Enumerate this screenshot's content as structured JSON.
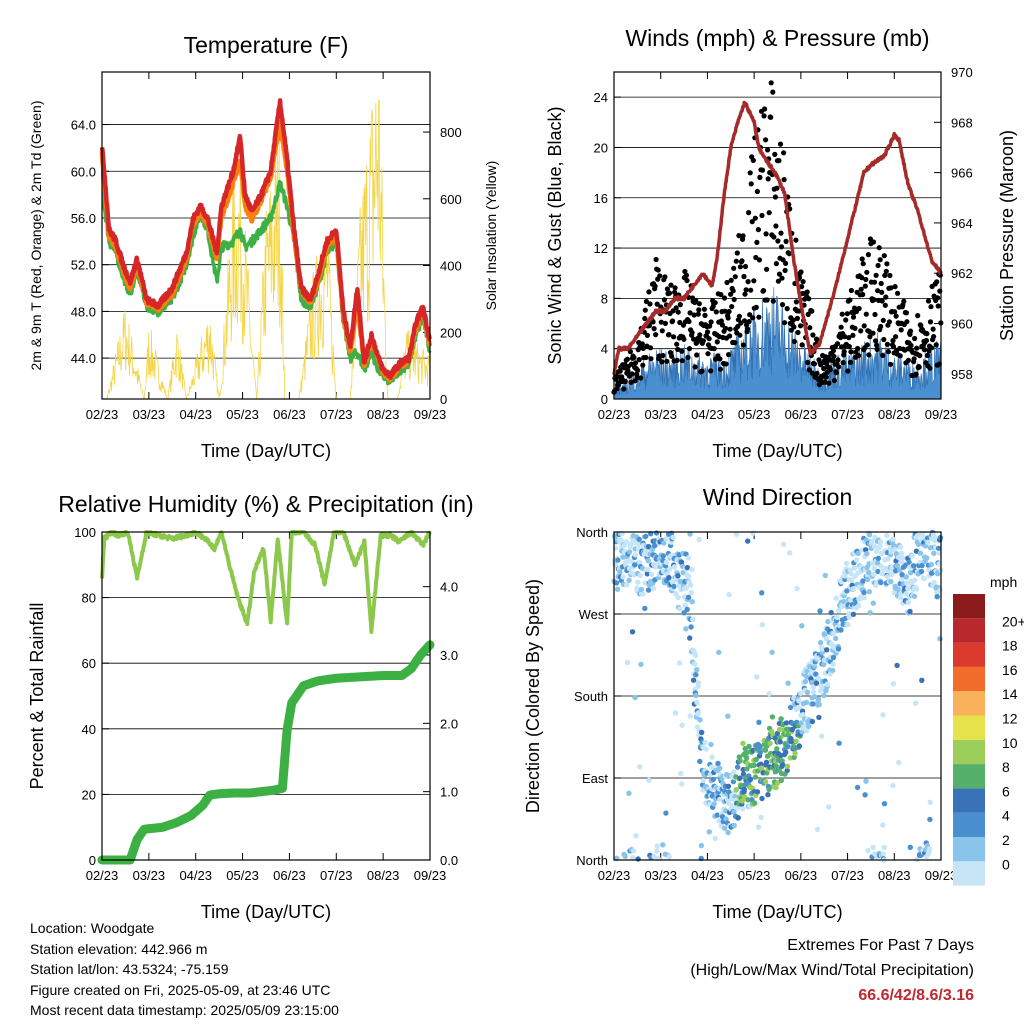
{
  "x_tick_labels": [
    "02/23",
    "03/23",
    "04/23",
    "05/23",
    "06/23",
    "07/23",
    "08/23",
    "09/23"
  ],
  "metadata": {
    "location": "Location: Woodgate",
    "elevation": "Station elevation: 442.966 m",
    "latlon": "Station lat/lon: 43.5324; -75.159",
    "created": "Figure created on Fri, 2025-05-09, at 23:46 UTC",
    "recent": "Most recent data timestamp: 2025/05/09 23:15:00"
  },
  "extremes": {
    "title": "Extremes For Past 7 Days",
    "subtitle": "(High/Low/Max Wind/Total Precipitation)",
    "values": "66.6/42/8.6/3.16",
    "color": "#c0282d"
  },
  "chart_data": [
    {
      "type": "line",
      "title": "Temperature (F)",
      "xlabel": "Time (Day/UTC)",
      "ylabel": "2m & 9m T (Red, Orange) & 2m Td (Green)",
      "y2label": "Solar Insolation (Yellow)",
      "xlim": [
        0,
        7
      ],
      "ylim": [
        40.5,
        68.5
      ],
      "y2lim": [
        0,
        980
      ],
      "yticks": [
        "44.0",
        "48.0",
        "52.0",
        "56.0",
        "60.0",
        "64.0"
      ],
      "y2ticks": [
        "0",
        "200",
        "400",
        "600",
        "800"
      ],
      "grid": "horizontal",
      "series": [
        {
          "color": "#d62728",
          "axis": "left",
          "x": [
            0.0,
            0.05,
            0.15,
            0.3,
            0.45,
            0.6,
            0.75,
            0.95,
            1.2,
            1.5,
            1.8,
            1.95,
            2.1,
            2.25,
            2.45,
            2.55,
            2.8,
            2.95,
            3.05,
            3.2,
            3.4,
            3.6,
            3.8,
            3.95,
            4.1,
            4.25,
            4.45,
            4.6,
            4.8,
            5.0,
            5.15,
            5.3,
            5.45,
            5.6,
            5.75,
            5.9,
            6.0,
            6.15,
            6.35,
            6.55,
            6.7,
            6.85,
            7.0
          ],
          "values": [
            62,
            60,
            55,
            54,
            52,
            50.5,
            52.5,
            49,
            48.5,
            50,
            53,
            56,
            57,
            56,
            53,
            57,
            60,
            63,
            58,
            56.5,
            58,
            60,
            66,
            61,
            55,
            50,
            49,
            51,
            54,
            55,
            48,
            45,
            50,
            43.5,
            46,
            44,
            43,
            42.5,
            43.5,
            44,
            47,
            48.4,
            45.5
          ]
        },
        {
          "color": "#ff7f0e",
          "axis": "left",
          "x": [
            0.0,
            0.05,
            0.15,
            0.3,
            0.45,
            0.6,
            0.75,
            0.95,
            1.2,
            1.5,
            1.8,
            1.95,
            2.1,
            2.25,
            2.45,
            2.55,
            2.8,
            2.95,
            3.05,
            3.2,
            3.4,
            3.6,
            3.8,
            3.95,
            4.1,
            4.25,
            4.45,
            4.6,
            4.8,
            5.0,
            5.15,
            5.3,
            5.45,
            5.6,
            5.75,
            5.9,
            6.0,
            6.15,
            6.35,
            6.55,
            6.7,
            6.85,
            7.0
          ],
          "values": [
            61.5,
            59,
            54.5,
            53.5,
            51.5,
            50,
            52,
            48.8,
            48.3,
            49.5,
            52.5,
            55.5,
            56.5,
            55.5,
            52.5,
            56,
            59,
            61,
            57,
            55.8,
            57.5,
            59.5,
            64,
            60,
            54.5,
            49.8,
            48.8,
            50.5,
            53.5,
            54.5,
            47.5,
            44.5,
            48.5,
            43.3,
            45.5,
            43.8,
            42.8,
            42.3,
            43.3,
            43.8,
            46.5,
            48,
            45.2
          ]
        },
        {
          "color": "#3cb043",
          "axis": "left",
          "x": [
            0.0,
            0.05,
            0.15,
            0.3,
            0.45,
            0.6,
            0.75,
            0.95,
            1.2,
            1.5,
            1.8,
            1.95,
            2.1,
            2.25,
            2.45,
            2.55,
            2.8,
            2.95,
            3.05,
            3.2,
            3.4,
            3.6,
            3.8,
            3.95,
            4.1,
            4.25,
            4.45,
            4.6,
            4.8,
            5.0,
            5.15,
            5.3,
            5.45,
            5.6,
            5.75,
            5.9,
            6.0,
            6.15,
            6.35,
            6.55,
            6.7,
            6.85,
            7.0
          ],
          "values": [
            61,
            57,
            54,
            53,
            51,
            49.5,
            51.5,
            48.5,
            48,
            49,
            52,
            54.5,
            56.5,
            55,
            50.5,
            53.5,
            54,
            55,
            53.5,
            54,
            55,
            56,
            59,
            57,
            54,
            49,
            48.5,
            50,
            53,
            54,
            47,
            44,
            44.5,
            43,
            44.5,
            43,
            42.5,
            42,
            43,
            43.5,
            46,
            47.5,
            44.5
          ]
        },
        {
          "color": "#f5d547",
          "axis": "right",
          "role": "insolation",
          "x": [
            0.1,
            0.5,
            0.9,
            1.0,
            1.4,
            1.6,
            1.8,
            2.3,
            2.5,
            2.8,
            2.95,
            3.3,
            3.5,
            3.8,
            3.9,
            4.2,
            4.5,
            4.8,
            5.0,
            5.3,
            5.5,
            5.9,
            6.1,
            6.3,
            6.5,
            6.9
          ],
          "values": [
            0,
            250,
            0,
            200,
            0,
            200,
            0,
            250,
            0,
            560,
            650,
            0,
            500,
            720,
            0,
            0,
            320,
            500,
            0,
            0,
            480,
            980,
            0,
            0,
            180,
            120
          ]
        }
      ]
    },
    {
      "type": "scatter",
      "title": "Winds (mph) & Pressure (mb)",
      "xlabel": "Time (Day/UTC)",
      "ylabel": "Sonic Wind & Gust (Blue, Black)",
      "y2label": "Station Pressure (Maroon)",
      "xlim": [
        0,
        7
      ],
      "ylim": [
        0,
        26
      ],
      "y2lim": [
        957,
        970
      ],
      "yticks": [
        "0",
        "4",
        "8",
        "12",
        "16",
        "20",
        "24"
      ],
      "y2ticks": [
        "958",
        "960",
        "962",
        "964",
        "966",
        "968",
        "970"
      ],
      "grid": "horizontal",
      "series": [
        {
          "color": "#000000",
          "axis": "left",
          "role": "gust-dots",
          "x": [
            0.0,
            0.3,
            0.6,
            0.9,
            1.2,
            1.5,
            1.8,
            2.1,
            2.4,
            2.6,
            2.8,
            3.0,
            3.2,
            3.4,
            3.6,
            3.8,
            4.0,
            4.2,
            4.4,
            4.6,
            4.8,
            5.0,
            5.2,
            5.4,
            5.6,
            5.8,
            6.0,
            6.2,
            6.4,
            6.6,
            6.8,
            7.0
          ],
          "values": [
            1.5,
            2.5,
            5,
            9,
            7,
            8,
            6,
            6,
            7,
            9,
            12,
            16,
            19,
            20,
            16,
            12,
            8,
            6,
            3,
            3,
            5,
            6,
            8,
            9,
            11,
            9,
            7,
            6,
            5,
            6,
            7,
            8
          ]
        },
        {
          "color": "#4a90d0",
          "axis": "left",
          "role": "wind-area",
          "x": [
            0.0,
            0.3,
            0.6,
            0.9,
            1.2,
            1.5,
            1.8,
            2.1,
            2.4,
            2.6,
            2.8,
            3.0,
            3.2,
            3.4,
            3.6,
            3.8,
            4.0,
            4.2,
            4.4,
            4.6,
            4.8,
            5.0,
            5.2,
            5.4,
            5.6,
            5.8,
            6.0,
            6.2,
            6.4,
            6.6,
            6.8,
            7.0
          ],
          "values": [
            0.5,
            1.5,
            2.5,
            3.5,
            3,
            3.5,
            3,
            3,
            3,
            4,
            5,
            6,
            7,
            7.5,
            6.5,
            5,
            4,
            3,
            2,
            2.5,
            3,
            3,
            3.5,
            4,
            4.5,
            4,
            3,
            3,
            2.5,
            3,
            3.5,
            4
          ]
        },
        {
          "color": "#a52a2a",
          "axis": "right",
          "role": "pressure",
          "x": [
            0.0,
            0.1,
            0.3,
            0.5,
            0.7,
            0.9,
            1.1,
            1.3,
            1.5,
            1.7,
            1.9,
            2.1,
            2.2,
            2.35,
            2.5,
            2.65,
            2.8,
            3.0,
            3.1,
            3.25,
            3.45,
            3.65,
            3.85,
            4.0,
            4.2,
            4.4,
            4.6,
            4.75,
            4.95,
            5.15,
            5.35,
            5.5,
            5.65,
            5.8,
            6.0,
            6.1,
            6.3,
            6.5,
            6.65,
            6.8,
            7.0
          ],
          "values": [
            958,
            959,
            959,
            959.5,
            960,
            960.5,
            960.5,
            961,
            961,
            961.5,
            962,
            961.5,
            962.5,
            965,
            967,
            968,
            968.8,
            968,
            967,
            966.5,
            966,
            965.2,
            962.5,
            960.8,
            958.8,
            959.2,
            960.5,
            961.5,
            963,
            964.5,
            966,
            966.3,
            966.5,
            966.7,
            967.5,
            967.3,
            965.5,
            964.5,
            963.5,
            962.5,
            962
          ]
        }
      ]
    },
    {
      "type": "line",
      "title": "Relative Humidity (%) & Precipitation (in)",
      "xlabel": "Time (Day/UTC)",
      "ylabel": "Percent & Total Rainfall",
      "xlim": [
        0,
        7
      ],
      "ylim": [
        0,
        100
      ],
      "y2lim": [
        0,
        4.8
      ],
      "yticks": [
        "0",
        "20",
        "40",
        "60",
        "80",
        "100"
      ],
      "y2ticks": [
        "0.0",
        "1.0",
        "2.0",
        "3.0",
        "4.0"
      ],
      "grid": "horizontal",
      "series": [
        {
          "color": "#8cc84b",
          "axis": "left",
          "role": "rh",
          "x": [
            0.0,
            0.05,
            0.2,
            0.35,
            0.55,
            0.75,
            0.95,
            1.2,
            1.5,
            1.8,
            2.0,
            2.2,
            2.4,
            2.55,
            2.75,
            2.9,
            3.1,
            3.25,
            3.45,
            3.6,
            3.75,
            3.95,
            4.05,
            4.3,
            4.55,
            4.75,
            4.95,
            5.15,
            5.4,
            5.6,
            5.75,
            5.95,
            6.15,
            6.35,
            6.6,
            6.85,
            7.0
          ],
          "values": [
            86,
            98,
            100,
            99,
            100,
            86,
            100,
            99,
            98,
            99,
            100,
            98,
            95,
            100,
            88,
            80,
            72,
            88,
            95,
            73,
            98,
            72,
            100,
            100,
            96,
            84,
            100,
            100,
            90,
            97,
            70,
            99,
            99,
            97,
            100,
            96,
            100
          ]
        },
        {
          "color": "#3cb043",
          "axis": "right",
          "role": "rain",
          "x": [
            0.0,
            0.6,
            0.75,
            0.9,
            1.3,
            1.6,
            1.9,
            2.15,
            2.3,
            2.5,
            2.8,
            3.15,
            3.65,
            3.85,
            3.95,
            4.05,
            4.3,
            4.6,
            5.0,
            5.5,
            6.0,
            6.4,
            6.6,
            6.8,
            7.0
          ],
          "values": [
            0,
            0,
            0.3,
            0.45,
            0.48,
            0.55,
            0.65,
            0.8,
            0.95,
            0.97,
            0.98,
            0.98,
            1.02,
            1.05,
            1.9,
            2.3,
            2.55,
            2.62,
            2.66,
            2.68,
            2.7,
            2.7,
            2.8,
            3.0,
            3.15
          ]
        }
      ]
    },
    {
      "type": "scatter",
      "title": "Wind Direction",
      "xlabel": "Time (Day/UTC)",
      "ylabel": "Direction (Colored By Speed)",
      "xlim": [
        0,
        7
      ],
      "ylim": [
        0,
        360
      ],
      "ytick_labels": [
        "North",
        "East",
        "South",
        "West",
        "North"
      ],
      "legend_title": "mph",
      "legend_labels": [
        "0",
        "2",
        "4",
        "6",
        "8",
        "10",
        "12",
        "14",
        "16",
        "18",
        "20+"
      ],
      "legend_colors": [
        "#c6e6f8",
        "#89c4ea",
        "#4a90d0",
        "#3a72b8",
        "#54b06a",
        "#9bce5a",
        "#e6e34a",
        "#f9b25a",
        "#f26d2b",
        "#d93a2b",
        "#b9282d",
        "#8b1a1a"
      ],
      "series": [
        {
          "name": "",
          "role": "direction",
          "x": [
            0.1,
            0.4,
            0.6,
            0.8,
            1.0,
            1.2,
            1.4,
            1.6,
            1.9,
            2.1,
            2.3,
            2.5,
            2.7,
            2.9,
            3.1,
            3.3,
            3.5,
            3.7,
            3.9,
            4.1,
            4.3,
            4.5,
            4.7,
            4.9,
            5.1,
            5.3,
            5.5,
            5.7,
            5.9,
            6.1,
            6.3,
            6.5,
            6.7,
            6.9
          ],
          "values": [
            330,
            340,
            320,
            335,
            345,
            330,
            310,
            300,
            100,
            80,
            70,
            60,
            85,
            90,
            95,
            110,
            115,
            130,
            150,
            175,
            190,
            215,
            245,
            285,
            300,
            320,
            330,
            340,
            320,
            315,
            300,
            335,
            345,
            320
          ]
        }
      ]
    }
  ]
}
